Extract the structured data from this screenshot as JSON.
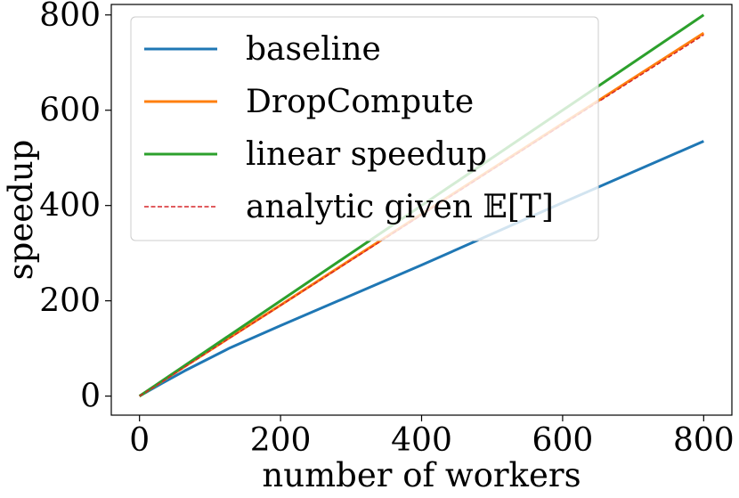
{
  "chart_data": {
    "type": "line",
    "xlabel": "number of workers",
    "ylabel": "speedup",
    "xlim": [
      -40,
      840
    ],
    "ylim": [
      -40,
      822
    ],
    "xticks": [
      0,
      200,
      400,
      600,
      800
    ],
    "yticks": [
      0,
      200,
      400,
      600,
      800
    ],
    "xtick_labels": [
      "0",
      "200",
      "400",
      "600",
      "800"
    ],
    "ytick_labels": [
      "0",
      "200",
      "400",
      "600",
      "800"
    ],
    "grid": false,
    "legend_position": "top-left",
    "series": [
      {
        "name": "baseline",
        "color": "#1f77b4",
        "style": "solid",
        "x": [
          0,
          32,
          64,
          128,
          200,
          400,
          600,
          800
        ],
        "y": [
          0,
          27,
          53,
          101,
          148,
          275,
          406,
          535
        ]
      },
      {
        "name": "DropCompute",
        "color": "#ff7f0e",
        "style": "solid",
        "x": [
          0,
          32,
          64,
          128,
          200,
          400,
          600,
          800
        ],
        "y": [
          0,
          31,
          62,
          123,
          191,
          382,
          572,
          762
        ]
      },
      {
        "name": "linear speedup",
        "color": "#2ca02c",
        "style": "solid",
        "x": [
          0,
          800
        ],
        "y": [
          0,
          800
        ]
      },
      {
        "name": "analytic given 𝔼[T]",
        "color": "#d62728",
        "style": "dashed",
        "x": [
          0,
          32,
          64,
          128,
          200,
          400,
          600,
          800
        ],
        "y": [
          0,
          30,
          61,
          122,
          190,
          380,
          570,
          758
        ]
      }
    ]
  }
}
